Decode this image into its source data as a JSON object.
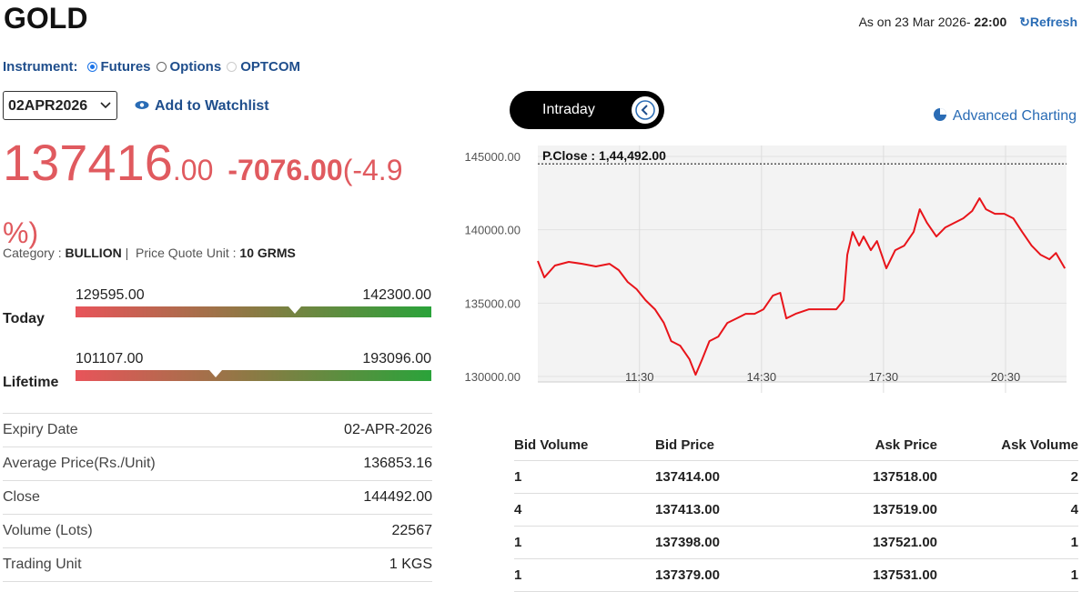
{
  "header": {
    "title": "GOLD",
    "as_on": "As on 23 Mar 2026-",
    "time": "22:00",
    "refresh": "Refresh"
  },
  "instrument": {
    "label": "Instrument:",
    "options": [
      "Futures",
      "Options",
      "OPTCOM"
    ],
    "selected": "Futures"
  },
  "expiry_select": "02APR2026",
  "watchlist": "Add to Watchlist",
  "quote": {
    "price": {
      "value": 137416,
      "label": "137416.00"
    },
    "change": "-7076.00",
    "change_pct": "(-4.9 %)"
  },
  "category": {
    "label": "Category :",
    "value": "BULLION",
    "unit_label": "Price Quote Unit :",
    "unit": "10 GRMS"
  },
  "ranges": [
    {
      "name": "Today",
      "low": 129595,
      "low_label": "129595.00",
      "high": 142300,
      "high_label": "142300.00"
    },
    {
      "name": "Lifetime",
      "low": 101107,
      "low_label": "101107.00",
      "high": 193096,
      "high_label": "193096.00"
    }
  ],
  "details": {
    "rows": [
      [
        "Expiry Date",
        "02-APR-2026"
      ],
      [
        "Average Price(Rs./Unit)",
        "136853.16"
      ],
      [
        "Close",
        "144492.00"
      ],
      [
        "Volume (Lots)",
        "22567"
      ],
      [
        "Trading Unit",
        "1 KGS"
      ]
    ]
  },
  "chart_tabs": {
    "active": "Intraday",
    "advanced": "Advanced Charting"
  },
  "chart_data": {
    "type": "line",
    "annotation": {
      "value": 144492,
      "label": "P.Close : 1,44,492.00"
    },
    "xlim": [
      9,
      22
    ],
    "ylim": [
      130000,
      145000
    ],
    "xticks": [
      {
        "value": 11.5,
        "label": "11:30"
      },
      {
        "value": 14.5,
        "label": "14:30"
      },
      {
        "value": 17.5,
        "label": "17:30"
      },
      {
        "value": 20.5,
        "label": "20:30"
      }
    ],
    "yticks": [
      {
        "value": 130000,
        "label": "130000.00"
      },
      {
        "value": 135000,
        "label": "135000.00"
      },
      {
        "value": 140000,
        "label": "140000.00"
      },
      {
        "value": 145000,
        "label": "145000.00"
      }
    ],
    "grid": true,
    "x": [
      9.0,
      9.16,
      9.42,
      9.76,
      10.09,
      10.43,
      10.76,
      10.99,
      11.21,
      11.43,
      11.65,
      11.88,
      12.1,
      12.28,
      12.5,
      12.73,
      12.88,
      13.04,
      13.22,
      13.44,
      13.66,
      13.89,
      14.11,
      14.33,
      14.55,
      14.78,
      14.96,
      15.11,
      15.34,
      15.67,
      16.0,
      16.34,
      16.52,
      16.61,
      16.74,
      16.9,
      17.01,
      17.19,
      17.34,
      17.57,
      17.79,
      18.01,
      18.24,
      18.39,
      18.57,
      18.8,
      19.02,
      19.24,
      19.46,
      19.68,
      19.86,
      20.02,
      20.24,
      20.47,
      20.69,
      20.91,
      21.14,
      21.36,
      21.58,
      21.74,
      21.96
    ],
    "series": [
      {
        "color": "#e8141a",
        "values": [
          137870,
          136750,
          137560,
          137810,
          137680,
          137500,
          137680,
          137250,
          136440,
          135950,
          135200,
          134580,
          133650,
          132410,
          132100,
          131170,
          130120,
          131170,
          132410,
          132720,
          133650,
          133960,
          134270,
          134270,
          134580,
          135510,
          135700,
          133960,
          134270,
          134580,
          134580,
          134580,
          135200,
          138300,
          139850,
          138920,
          139540,
          138610,
          139230,
          137370,
          138610,
          138920,
          139850,
          141400,
          140470,
          139540,
          140160,
          140470,
          140780,
          141280,
          142150,
          141400,
          141090,
          141090,
          140780,
          139850,
          138920,
          138300,
          137990,
          138420,
          137370
        ]
      }
    ]
  },
  "order_book": {
    "columns": [
      "Bid Volume",
      "Bid Price",
      "Ask Price",
      "Ask Volume"
    ],
    "rows": [
      [
        "1",
        "137414.00",
        "137518.00",
        "2"
      ],
      [
        "4",
        "137413.00",
        "137519.00",
        "4"
      ],
      [
        "1",
        "137398.00",
        "137521.00",
        "1"
      ],
      [
        "1",
        "137379.00",
        "137531.00",
        "1"
      ]
    ]
  }
}
